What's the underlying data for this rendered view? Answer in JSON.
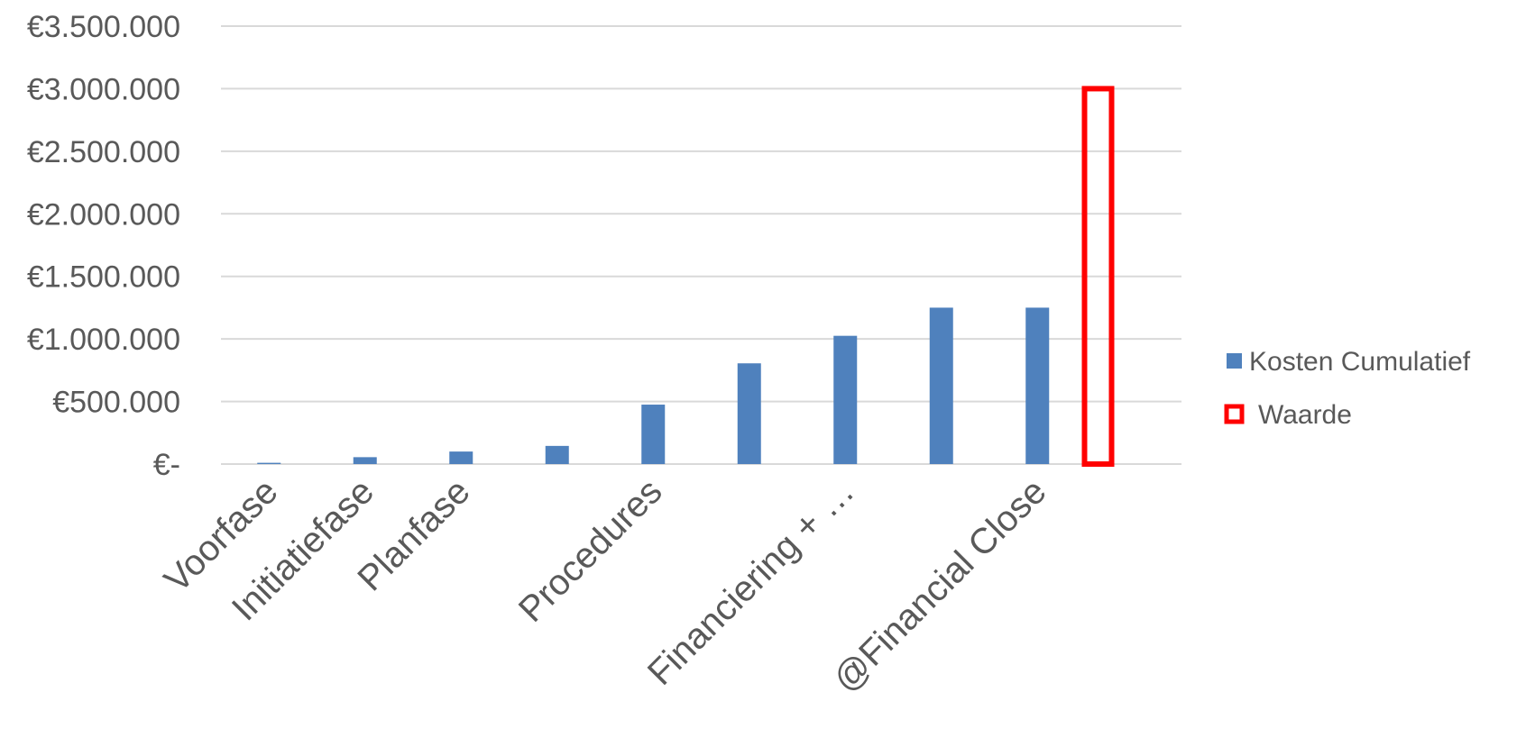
{
  "chart_data": {
    "type": "bar",
    "categories": [
      "Voorfase",
      "Initiatiefase",
      "Planfase",
      "",
      "Procedures",
      "",
      "Financiering + …",
      "",
      "@Financial Close",
      ""
    ],
    "ytick_labels": [
      "€-",
      "€500.000",
      "€1.000.000",
      "€1.500.000",
      "€2.000.000",
      "€2.500.000",
      "€3.000.000",
      "€3.500.000"
    ],
    "ylim": [
      0,
      3500000
    ],
    "grid": true,
    "legend_position": "right",
    "series": [
      {
        "name": "Kosten Cumulatief",
        "kind": "bar",
        "color": "#4f81bd",
        "values": [
          10000,
          55000,
          100000,
          145000,
          475000,
          805000,
          1025000,
          1250000,
          1250000,
          null
        ]
      },
      {
        "name": "Waarde",
        "kind": "bar-outline",
        "color": "#ff0000",
        "values": [
          null,
          null,
          null,
          null,
          null,
          null,
          null,
          null,
          null,
          3000000
        ]
      }
    ]
  }
}
